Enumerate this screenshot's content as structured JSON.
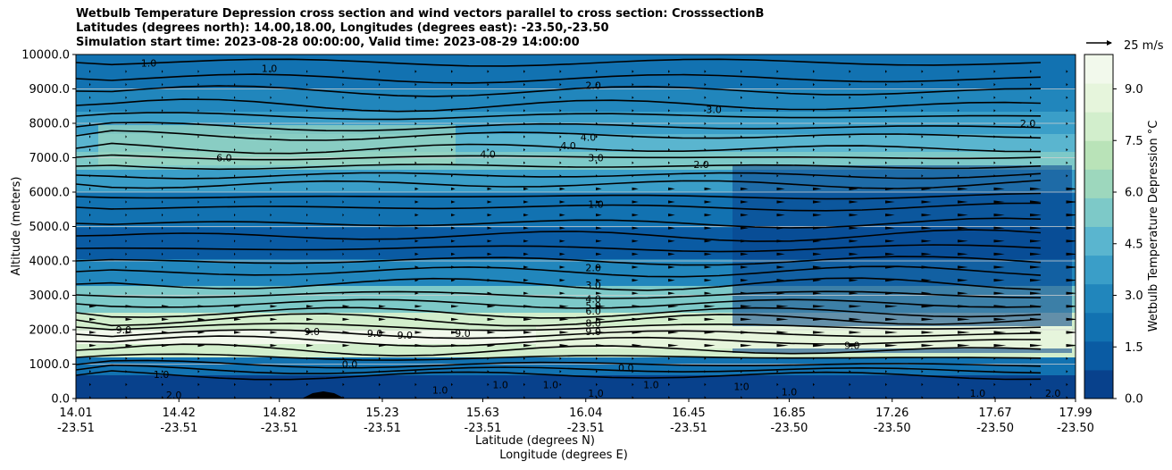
{
  "titles": {
    "line1": "Wetbulb Temperature Depression cross section and wind vectors parallel to cross section: CrosssectionB",
    "line2": "Latitudes (degrees north): 14.00,18.00, Longitudes (degrees east): -23.50,-23.50",
    "line3": "Simulation start time: 2023-08-28 00:00:00, Valid time: 2023-08-29 14:00:00"
  },
  "chart_data": {
    "type": "heatmap",
    "ylabel": "Altitude (meters)",
    "xlabel_lat": "Latitude (degrees N)",
    "xlabel_lon": "Longitude (degrees E)",
    "ylim": [
      0,
      10000
    ],
    "y_ticks": [
      "0.0",
      "1000.0",
      "2000.0",
      "3000.0",
      "4000.0",
      "5000.0",
      "6000.0",
      "7000.0",
      "8000.0",
      "9000.0",
      "10000.0"
    ],
    "x_ticks": [
      {
        "lat": "14.01",
        "lon": "-23.51"
      },
      {
        "lat": "14.42",
        "lon": "-23.51"
      },
      {
        "lat": "14.82",
        "lon": "-23.51"
      },
      {
        "lat": "15.23",
        "lon": "-23.51"
      },
      {
        "lat": "15.63",
        "lon": "-23.51"
      },
      {
        "lat": "16.04",
        "lon": "-23.51"
      },
      {
        "lat": "16.45",
        "lon": "-23.51"
      },
      {
        "lat": "16.85",
        "lon": "-23.50"
      },
      {
        "lat": "17.26",
        "lon": "-23.50"
      },
      {
        "lat": "17.67",
        "lon": "-23.50"
      },
      {
        "lat": "17.99",
        "lon": "-23.50"
      }
    ],
    "x_tick_values": [
      14.01,
      14.42,
      14.82,
      15.23,
      15.63,
      16.04,
      16.45,
      16.85,
      17.26,
      17.67,
      17.99
    ],
    "grid": "horizontal",
    "colorbar": {
      "label": "Wetbulb Temperature Depression °C",
      "range": [
        0,
        10
      ],
      "ticks": [
        "0.0",
        "1.5",
        "3.0",
        "4.5",
        "6.0",
        "7.5",
        "9.0"
      ],
      "tick_values": [
        0,
        1.5,
        3.0,
        4.5,
        6.0,
        7.5,
        9.0
      ],
      "colors": [
        "#08418c",
        "#0a5ba3",
        "#1272b1",
        "#2186bc",
        "#3a9ec8",
        "#5ab5cf",
        "#7dc9c8",
        "#9dd7bd",
        "#b9e3b8",
        "#d2eecc",
        "#e6f5dc",
        "#f2f9ec"
      ]
    },
    "quiver_key": {
      "label": "25 m/s",
      "value": 25
    },
    "contour_labels": [
      {
        "text": "1.0",
        "x": 14.3,
        "y": 9750
      },
      {
        "text": "1.0",
        "x": 14.78,
        "y": 9600
      },
      {
        "text": "2.0",
        "x": 16.07,
        "y": 9100
      },
      {
        "text": "3.0",
        "x": 16.55,
        "y": 8400
      },
      {
        "text": "2.0",
        "x": 17.8,
        "y": 8000
      },
      {
        "text": "4.0",
        "x": 16.05,
        "y": 7600
      },
      {
        "text": "4.0",
        "x": 15.97,
        "y": 7350
      },
      {
        "text": "4.0",
        "x": 15.65,
        "y": 7100
      },
      {
        "text": "3.0",
        "x": 16.08,
        "y": 7000
      },
      {
        "text": "6.0",
        "x": 14.6,
        "y": 7000
      },
      {
        "text": "2.0",
        "x": 16.5,
        "y": 6800
      },
      {
        "text": "1.0",
        "x": 16.08,
        "y": 5650
      },
      {
        "text": "2.0",
        "x": 16.07,
        "y": 3800
      },
      {
        "text": "3.0",
        "x": 16.07,
        "y": 3300
      },
      {
        "text": "4.0",
        "x": 16.07,
        "y": 2900
      },
      {
        "text": "5.0",
        "x": 16.07,
        "y": 2700
      },
      {
        "text": "6.0",
        "x": 16.07,
        "y": 2550
      },
      {
        "text": "8.0",
        "x": 16.07,
        "y": 2200
      },
      {
        "text": "9.0",
        "x": 16.07,
        "y": 1950
      },
      {
        "text": "9.0",
        "x": 14.2,
        "y": 2000
      },
      {
        "text": "9.0",
        "x": 14.95,
        "y": 1950
      },
      {
        "text": "9.0",
        "x": 15.2,
        "y": 1900
      },
      {
        "text": "9.0",
        "x": 15.32,
        "y": 1850
      },
      {
        "text": "9.0",
        "x": 15.55,
        "y": 1900
      },
      {
        "text": "9.0",
        "x": 17.1,
        "y": 1550
      },
      {
        "text": "0.0",
        "x": 15.1,
        "y": 1000
      },
      {
        "text": "0.0",
        "x": 16.2,
        "y": 900
      },
      {
        "text": "1.0",
        "x": 14.35,
        "y": 700
      },
      {
        "text": "2.0",
        "x": 14.4,
        "y": 100
      },
      {
        "text": "1.0",
        "x": 15.7,
        "y": 400
      },
      {
        "text": "1.0",
        "x": 15.9,
        "y": 400
      },
      {
        "text": "1.0",
        "x": 16.3,
        "y": 400
      },
      {
        "text": "1.0",
        "x": 16.08,
        "y": 150
      },
      {
        "text": "1.0",
        "x": 15.46,
        "y": 250
      },
      {
        "text": "1.0",
        "x": 16.66,
        "y": 350
      },
      {
        "text": "1.0",
        "x": 16.85,
        "y": 200
      },
      {
        "text": "1.0",
        "x": 17.6,
        "y": 150
      },
      {
        "text": "2.0",
        "x": 17.9,
        "y": 150
      }
    ]
  }
}
